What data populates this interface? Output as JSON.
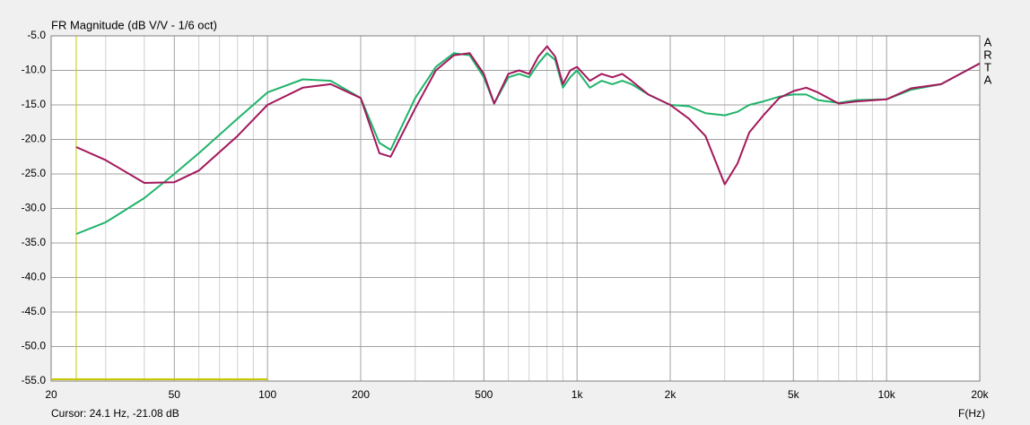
{
  "chart_data": {
    "type": "line",
    "title": "FR Magnitude (dB V/V - 1/6 oct)",
    "x_label": "F(Hz)",
    "cursor_label": "Cursor: 24.1 Hz, -21.08 dB",
    "cursor_x": 24.1,
    "brand_letters": [
      "A",
      "R",
      "T",
      "A"
    ],
    "log_x": true,
    "grid": true,
    "xlim": [
      20,
      20000
    ],
    "ylim": [
      -55,
      -5
    ],
    "xticks": [
      20,
      50,
      100,
      200,
      500,
      {
        "value": 1000,
        "label": "1k"
      },
      {
        "value": 2000,
        "label": "2k"
      },
      {
        "value": 5000,
        "label": "5k"
      },
      {
        "value": 10000,
        "label": "10k"
      },
      {
        "value": 20000,
        "label": "20k"
      }
    ],
    "xminor": [
      30,
      40,
      60,
      70,
      80,
      90,
      300,
      400,
      600,
      700,
      800,
      900,
      3000,
      4000,
      6000,
      7000,
      8000,
      9000
    ],
    "yticks": [
      {
        "value": -5,
        "label": "-5.0"
      },
      {
        "value": -10,
        "label": "-10.0"
      },
      {
        "value": -15,
        "label": "-15.0"
      },
      {
        "value": -20,
        "label": "-20.0"
      },
      {
        "value": -25,
        "label": "-25.0"
      },
      {
        "value": -30,
        "label": "-30.0"
      },
      {
        "value": -35,
        "label": "-35.0"
      },
      {
        "value": -40,
        "label": "-40.0"
      },
      {
        "value": -45,
        "label": "-45.0"
      },
      {
        "value": -50,
        "label": "-50.0"
      },
      {
        "value": -55,
        "label": "-55.0"
      }
    ],
    "x": [
      24.1,
      30,
      40,
      50,
      60,
      80,
      100,
      130,
      160,
      200,
      230,
      250,
      300,
      350,
      400,
      450,
      500,
      540,
      600,
      650,
      700,
      750,
      800,
      850,
      900,
      950,
      1000,
      1100,
      1200,
      1300,
      1400,
      1500,
      1700,
      2000,
      2300,
      2600,
      3000,
      3300,
      3600,
      4000,
      4500,
      5000,
      5500,
      6000,
      7000,
      8000,
      10000,
      12000,
      15000,
      20000
    ],
    "series": [
      {
        "color": "#1fb36a",
        "values": [
          -33.7,
          -32,
          -28.5,
          -25,
          -22,
          -17,
          -13.2,
          -11.3,
          -11.5,
          -14,
          -20.5,
          -21.5,
          -14,
          -9.5,
          -7.5,
          -7.8,
          -11,
          -14.8,
          -11,
          -10.5,
          -11,
          -9,
          -7.5,
          -8.5,
          -12.5,
          -11,
          -10,
          -12.5,
          -11.5,
          -12,
          -11.5,
          -12,
          -13.5,
          -15,
          -15.2,
          -16.2,
          -16.5,
          -16,
          -15,
          -14.5,
          -13.8,
          -13.5,
          -13.5,
          -14.3,
          -14.7,
          -14.3,
          -14.2,
          -12.8,
          -12,
          -9
        ]
      },
      {
        "color": "#a3185c",
        "values": [
          -21.1,
          -23,
          -26.3,
          -26.2,
          -24.5,
          -19.5,
          -15,
          -12.5,
          -12,
          -14,
          -22,
          -22.5,
          -15.5,
          -10,
          -7.8,
          -7.5,
          -10.5,
          -14.8,
          -10.5,
          -10,
          -10.5,
          -8,
          -6.5,
          -8,
          -12,
          -10,
          -9.5,
          -11.5,
          -10.5,
          -11,
          -10.5,
          -11.5,
          -13.5,
          -15,
          -17,
          -19.5,
          -26.5,
          -23.5,
          -19,
          -16.5,
          -14,
          -13,
          -12.5,
          -13.2,
          -14.8,
          -14.5,
          -14.2,
          -12.6,
          -12,
          -9
        ]
      }
    ]
  }
}
